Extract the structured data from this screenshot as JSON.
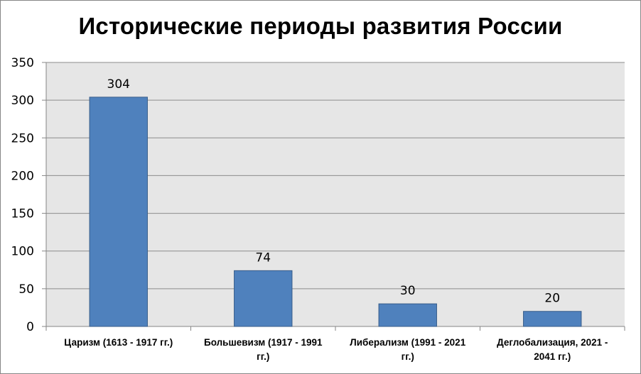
{
  "chart_data": {
    "type": "bar",
    "title": "Исторические периоды развития России",
    "xlabel": "",
    "ylabel": "",
    "categories": [
      [
        "Царизм (1613 - 1917 гг.)"
      ],
      [
        "Большевизм (1917 - 1991",
        "гг.)"
      ],
      [
        "Либерализм (1991 - 2021",
        "гг.)"
      ],
      [
        "Деглобализация, 2021 -",
        "2041 гг.)"
      ]
    ],
    "values": [
      304,
      74,
      30,
      20
    ],
    "data_labels": [
      "304",
      "74",
      "30",
      "20"
    ],
    "ylim": [
      0,
      350
    ],
    "yticks": [
      0,
      50,
      100,
      150,
      200,
      250,
      300,
      350
    ],
    "grid": true,
    "legend": "none",
    "colors": {
      "bar_fill": "#4F81BD",
      "bar_stroke": "#385D8A",
      "plot_background": "#E6E6E6",
      "gridline": "#8C8C8C",
      "axis": "#868686"
    }
  }
}
